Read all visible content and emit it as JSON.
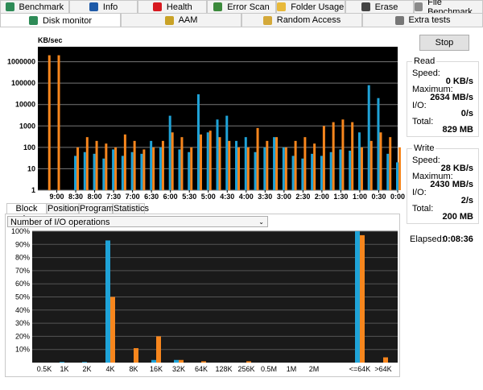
{
  "tabs_row1": [
    "Benchmark",
    "Info",
    "Health",
    "Error Scan",
    "Folder Usage",
    "Erase",
    "File Benchmark"
  ],
  "tabs_row2": [
    "Disk monitor",
    "AAM",
    "Random Access",
    "Extra tests"
  ],
  "stop_button": "Stop",
  "read": {
    "title": "Read",
    "speed_label": "Speed:",
    "speed": "0 KB/s",
    "maximum_label": "Maximum:",
    "maximum": "2634 MB/s",
    "io_label": "I/O:",
    "io": "0/s",
    "total_label": "Total:",
    "total": "829 MB"
  },
  "write": {
    "title": "Write",
    "speed_label": "Speed:",
    "speed": "28 KB/s",
    "maximum_label": "Maximum:",
    "maximum": "2430 MB/s",
    "io_label": "I/O:",
    "io": "2/s",
    "total_label": "Total:",
    "total": "200 MB"
  },
  "elapsed_label": "Elapsed:",
  "elapsed": "0:08:36",
  "bottom_tabs": [
    "Block size",
    "Position",
    "Programs",
    "Statistics"
  ],
  "dropdown": "Number of I/O operations",
  "chart_data": [
    {
      "type": "bar",
      "y_label": "KB/sec",
      "log_scale": true,
      "grid": true,
      "ylim": [
        1,
        5000000
      ],
      "yticks": [
        1,
        10,
        100,
        1000,
        10000,
        100000,
        1000000
      ],
      "xlim": [
        570,
        0
      ],
      "xticks": [
        {
          "value": 540,
          "label": "9:00"
        },
        {
          "value": 510,
          "label": "8:30"
        },
        {
          "value": 480,
          "label": "8:00"
        },
        {
          "value": 450,
          "label": "7:30"
        },
        {
          "value": 420,
          "label": "7:00"
        },
        {
          "value": 390,
          "label": "6:30"
        },
        {
          "value": 360,
          "label": "6:00"
        },
        {
          "value": 330,
          "label": "5:30"
        },
        {
          "value": 300,
          "label": "5:00"
        },
        {
          "value": 270,
          "label": "4:30"
        },
        {
          "value": 240,
          "label": "4:00"
        },
        {
          "value": 210,
          "label": "3:30"
        },
        {
          "value": 180,
          "label": "3:00"
        },
        {
          "value": 150,
          "label": "2:30"
        },
        {
          "value": 120,
          "label": "2:00"
        },
        {
          "value": 90,
          "label": "1:30"
        },
        {
          "value": 60,
          "label": "1:00"
        },
        {
          "value": 30,
          "label": "0:30"
        },
        {
          "value": 0,
          "label": "0:00"
        }
      ],
      "x": [
        555,
        540,
        525,
        510,
        495,
        480,
        465,
        450,
        435,
        420,
        405,
        390,
        375,
        360,
        345,
        330,
        315,
        300,
        285,
        270,
        255,
        240,
        225,
        210,
        195,
        180,
        165,
        150,
        135,
        120,
        105,
        90,
        75,
        60,
        45,
        30,
        15,
        0
      ],
      "series": [
        {
          "color": "#1fa3d8",
          "values": [
            1,
            1,
            1,
            40,
            60,
            50,
            30,
            80,
            40,
            60,
            50,
            200,
            100,
            3000,
            80,
            60,
            30000,
            500,
            2000,
            3000,
            200,
            300,
            60,
            100,
            300,
            100,
            40,
            30,
            50,
            40,
            60,
            80,
            70,
            500,
            80000,
            20000,
            50,
            20
          ]
        },
        {
          "color": "#f7861d",
          "values": [
            2000000,
            2000000,
            1,
            100,
            300,
            200,
            150,
            100,
            400,
            200,
            80,
            100,
            200,
            500,
            300,
            100,
            400,
            600,
            300,
            200,
            100,
            100,
            800,
            200,
            300,
            100,
            200,
            300,
            150,
            1000,
            1500,
            2000,
            1500,
            100,
            200,
            500,
            300,
            100
          ]
        }
      ]
    },
    {
      "type": "bar",
      "grid": true,
      "ylim": [
        0,
        100
      ],
      "yticks": [
        {
          "value": 10,
          "label": "10%"
        },
        {
          "value": 20,
          "label": "20%"
        },
        {
          "value": 30,
          "label": "30%"
        },
        {
          "value": 40,
          "label": "40%"
        },
        {
          "value": 50,
          "label": "50%"
        },
        {
          "value": 60,
          "label": "60%"
        },
        {
          "value": 70,
          "label": "70%"
        },
        {
          "value": 80,
          "label": "80%"
        },
        {
          "value": 90,
          "label": "90%"
        },
        {
          "value": 100,
          "label": "100%"
        }
      ],
      "categories": [
        "0.5K",
        "1K",
        "2K",
        "4K",
        "8K",
        "16K",
        "32K",
        "64K",
        "128K",
        "256K",
        "0.5M",
        "1M",
        "2M",
        "<=64K",
        ">64K"
      ],
      "series": [
        {
          "color": "#1fa3d8",
          "values": [
            0,
            0.5,
            0.5,
            93,
            0,
            2,
            2,
            0,
            0,
            0,
            0,
            0,
            0,
            100,
            0
          ]
        },
        {
          "color": "#f7861d",
          "values": [
            0,
            0,
            0,
            50,
            11,
            20,
            2,
            1,
            0,
            1,
            0,
            0,
            0,
            97,
            4
          ]
        }
      ]
    }
  ]
}
